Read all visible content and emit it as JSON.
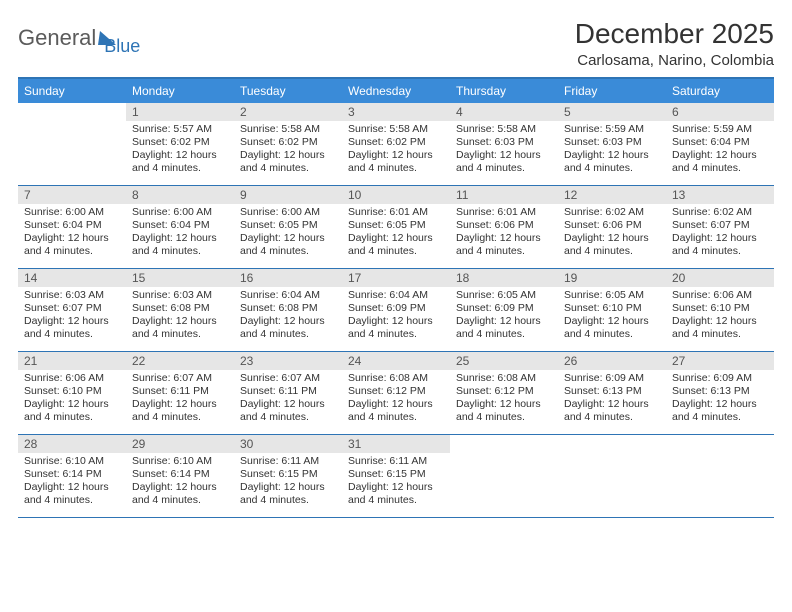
{
  "logo": {
    "text1": "General",
    "text2": "Blue"
  },
  "title": "December 2025",
  "location": "Carlosama, Narino, Colombia",
  "colors": {
    "header_bg": "#3a8bd8",
    "accent_line": "#2e74b5",
    "daynum_bg": "#e6e6e6",
    "text": "#333333"
  },
  "day_names": [
    "Sunday",
    "Monday",
    "Tuesday",
    "Wednesday",
    "Thursday",
    "Friday",
    "Saturday"
  ],
  "weeks": [
    [
      {
        "empty": true
      },
      {
        "day": "1",
        "sunrise": "5:57 AM",
        "sunset": "6:02 PM",
        "daylight": "12 hours and 4 minutes."
      },
      {
        "day": "2",
        "sunrise": "5:58 AM",
        "sunset": "6:02 PM",
        "daylight": "12 hours and 4 minutes."
      },
      {
        "day": "3",
        "sunrise": "5:58 AM",
        "sunset": "6:02 PM",
        "daylight": "12 hours and 4 minutes."
      },
      {
        "day": "4",
        "sunrise": "5:58 AM",
        "sunset": "6:03 PM",
        "daylight": "12 hours and 4 minutes."
      },
      {
        "day": "5",
        "sunrise": "5:59 AM",
        "sunset": "6:03 PM",
        "daylight": "12 hours and 4 minutes."
      },
      {
        "day": "6",
        "sunrise": "5:59 AM",
        "sunset": "6:04 PM",
        "daylight": "12 hours and 4 minutes."
      }
    ],
    [
      {
        "day": "7",
        "sunrise": "6:00 AM",
        "sunset": "6:04 PM",
        "daylight": "12 hours and 4 minutes."
      },
      {
        "day": "8",
        "sunrise": "6:00 AM",
        "sunset": "6:04 PM",
        "daylight": "12 hours and 4 minutes."
      },
      {
        "day": "9",
        "sunrise": "6:00 AM",
        "sunset": "6:05 PM",
        "daylight": "12 hours and 4 minutes."
      },
      {
        "day": "10",
        "sunrise": "6:01 AM",
        "sunset": "6:05 PM",
        "daylight": "12 hours and 4 minutes."
      },
      {
        "day": "11",
        "sunrise": "6:01 AM",
        "sunset": "6:06 PM",
        "daylight": "12 hours and 4 minutes."
      },
      {
        "day": "12",
        "sunrise": "6:02 AM",
        "sunset": "6:06 PM",
        "daylight": "12 hours and 4 minutes."
      },
      {
        "day": "13",
        "sunrise": "6:02 AM",
        "sunset": "6:07 PM",
        "daylight": "12 hours and 4 minutes."
      }
    ],
    [
      {
        "day": "14",
        "sunrise": "6:03 AM",
        "sunset": "6:07 PM",
        "daylight": "12 hours and 4 minutes."
      },
      {
        "day": "15",
        "sunrise": "6:03 AM",
        "sunset": "6:08 PM",
        "daylight": "12 hours and 4 minutes."
      },
      {
        "day": "16",
        "sunrise": "6:04 AM",
        "sunset": "6:08 PM",
        "daylight": "12 hours and 4 minutes."
      },
      {
        "day": "17",
        "sunrise": "6:04 AM",
        "sunset": "6:09 PM",
        "daylight": "12 hours and 4 minutes."
      },
      {
        "day": "18",
        "sunrise": "6:05 AM",
        "sunset": "6:09 PM",
        "daylight": "12 hours and 4 minutes."
      },
      {
        "day": "19",
        "sunrise": "6:05 AM",
        "sunset": "6:10 PM",
        "daylight": "12 hours and 4 minutes."
      },
      {
        "day": "20",
        "sunrise": "6:06 AM",
        "sunset": "6:10 PM",
        "daylight": "12 hours and 4 minutes."
      }
    ],
    [
      {
        "day": "21",
        "sunrise": "6:06 AM",
        "sunset": "6:10 PM",
        "daylight": "12 hours and 4 minutes."
      },
      {
        "day": "22",
        "sunrise": "6:07 AM",
        "sunset": "6:11 PM",
        "daylight": "12 hours and 4 minutes."
      },
      {
        "day": "23",
        "sunrise": "6:07 AM",
        "sunset": "6:11 PM",
        "daylight": "12 hours and 4 minutes."
      },
      {
        "day": "24",
        "sunrise": "6:08 AM",
        "sunset": "6:12 PM",
        "daylight": "12 hours and 4 minutes."
      },
      {
        "day": "25",
        "sunrise": "6:08 AM",
        "sunset": "6:12 PM",
        "daylight": "12 hours and 4 minutes."
      },
      {
        "day": "26",
        "sunrise": "6:09 AM",
        "sunset": "6:13 PM",
        "daylight": "12 hours and 4 minutes."
      },
      {
        "day": "27",
        "sunrise": "6:09 AM",
        "sunset": "6:13 PM",
        "daylight": "12 hours and 4 minutes."
      }
    ],
    [
      {
        "day": "28",
        "sunrise": "6:10 AM",
        "sunset": "6:14 PM",
        "daylight": "12 hours and 4 minutes."
      },
      {
        "day": "29",
        "sunrise": "6:10 AM",
        "sunset": "6:14 PM",
        "daylight": "12 hours and 4 minutes."
      },
      {
        "day": "30",
        "sunrise": "6:11 AM",
        "sunset": "6:15 PM",
        "daylight": "12 hours and 4 minutes."
      },
      {
        "day": "31",
        "sunrise": "6:11 AM",
        "sunset": "6:15 PM",
        "daylight": "12 hours and 4 minutes."
      },
      {
        "empty": true
      },
      {
        "empty": true
      },
      {
        "empty": true
      }
    ]
  ],
  "labels": {
    "sunrise_prefix": "Sunrise: ",
    "sunset_prefix": "Sunset: ",
    "daylight_prefix": "Daylight: "
  }
}
